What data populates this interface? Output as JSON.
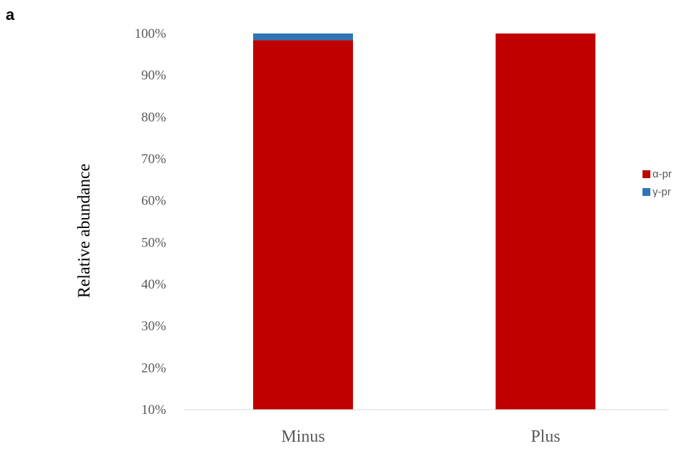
{
  "panel_label": "a",
  "chart_data": {
    "type": "bar",
    "stacked": true,
    "categories": [
      "Minus",
      "Plus"
    ],
    "ylabel": "Relative abundance",
    "ylim": [
      0.1,
      1.0
    ],
    "yticks": [
      "10%",
      "20%",
      "30%",
      "40%",
      "50%",
      "60%",
      "70%",
      "80%",
      "90%",
      "100%"
    ],
    "series": [
      {
        "name": "α-pr",
        "color": "#C00000",
        "values": [
          0.984,
          1.0
        ]
      },
      {
        "name": "γ-pr",
        "color": "#2E75B6",
        "values": [
          0.016,
          0.0
        ]
      }
    ],
    "legend": "right"
  }
}
